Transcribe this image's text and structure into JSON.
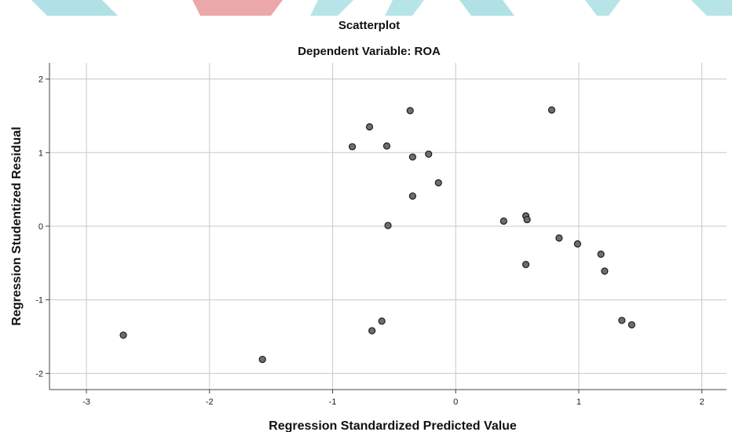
{
  "chart_data": {
    "type": "scatter",
    "title": "Scatterplot",
    "subtitle": "Dependent Variable: ROA",
    "xlabel": "Regression Standardized Predicted Value",
    "ylabel": "Regression Studentized Residual",
    "xlim": [
      -3.3,
      2.2
    ],
    "ylim": [
      -2.22,
      2.22
    ],
    "xticks": [
      "-3",
      "-2",
      "-1",
      "0",
      "1",
      "2"
    ],
    "yticks": [
      "2",
      "1",
      "0",
      "-1",
      "-2"
    ],
    "grid": true,
    "points": [
      {
        "x": -2.7,
        "y": -1.48
      },
      {
        "x": -1.57,
        "y": -1.81
      },
      {
        "x": -0.84,
        "y": 1.08
      },
      {
        "x": -0.7,
        "y": 1.35
      },
      {
        "x": -0.68,
        "y": -1.42
      },
      {
        "x": -0.6,
        "y": -1.29
      },
      {
        "x": -0.56,
        "y": 1.09
      },
      {
        "x": -0.55,
        "y": 0.01
      },
      {
        "x": -0.37,
        "y": 1.57
      },
      {
        "x": -0.35,
        "y": 0.94
      },
      {
        "x": -0.35,
        "y": 0.41
      },
      {
        "x": -0.22,
        "y": 0.98
      },
      {
        "x": -0.14,
        "y": 0.59
      },
      {
        "x": 0.39,
        "y": 0.07
      },
      {
        "x": 0.57,
        "y": 0.14
      },
      {
        "x": 0.58,
        "y": 0.09
      },
      {
        "x": 0.57,
        "y": -0.52
      },
      {
        "x": 0.78,
        "y": 1.58
      },
      {
        "x": 0.84,
        "y": -0.16
      },
      {
        "x": 0.99,
        "y": -0.24
      },
      {
        "x": 1.18,
        "y": -0.38
      },
      {
        "x": 1.21,
        "y": -0.61
      },
      {
        "x": 1.35,
        "y": -1.28
      },
      {
        "x": 1.43,
        "y": -1.34
      }
    ]
  },
  "colors": {
    "marker_fill": "#6e6e6e",
    "marker_stroke": "#1e1e1e",
    "grid": "#c8c8c8",
    "axis": "#444444",
    "banner_teal": "#6fc9cf",
    "banner_red": "#e58a8f"
  }
}
